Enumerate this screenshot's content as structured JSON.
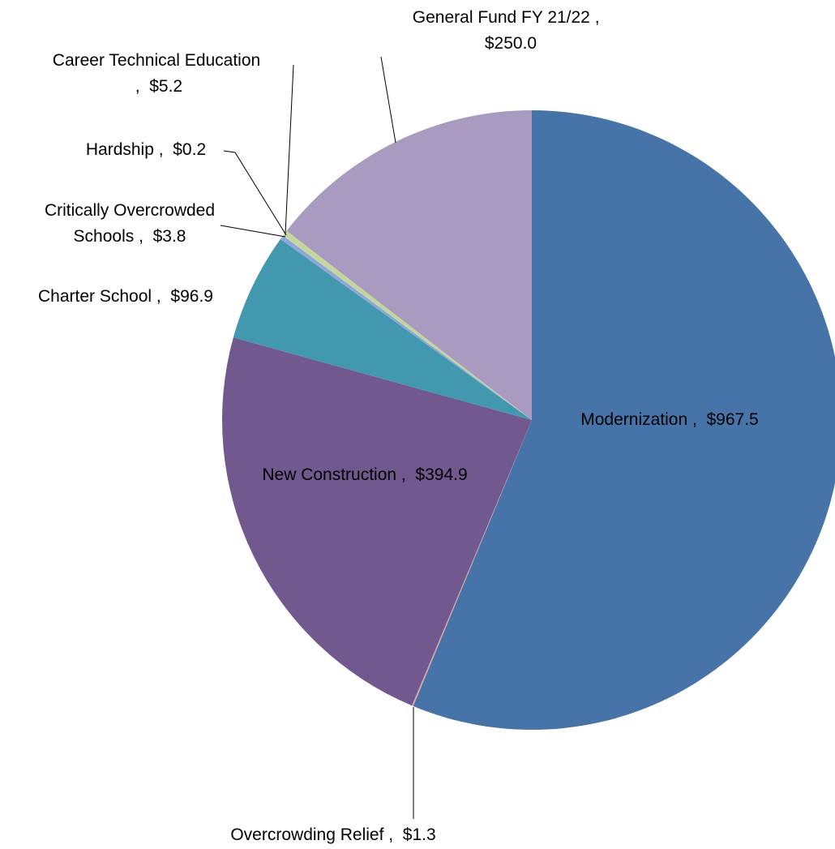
{
  "chart_data": {
    "type": "pie",
    "categories": [
      "Modernization",
      "Overcrowding Relief",
      "New Construction",
      "Charter School",
      "Critically Overcrowded Schools",
      "Hardship",
      "Career Technical Education",
      "General Fund FY 21/22"
    ],
    "values": [
      967.5,
      1.3,
      394.9,
      96.9,
      3.8,
      0.2,
      5.2,
      250.0
    ],
    "value_labels": [
      "$967.5",
      "$1.3",
      "$394.9",
      "$96.9",
      "$3.8",
      "$0.2",
      "$5.2",
      "$250.0"
    ],
    "label_separator": " ,  ",
    "colors": [
      "#4674a8",
      "#d9a5a3",
      "#71588f",
      "#4198af",
      "#8fa6d6",
      "#b8c7e6",
      "#c3d69b",
      "#a89bbf"
    ]
  }
}
